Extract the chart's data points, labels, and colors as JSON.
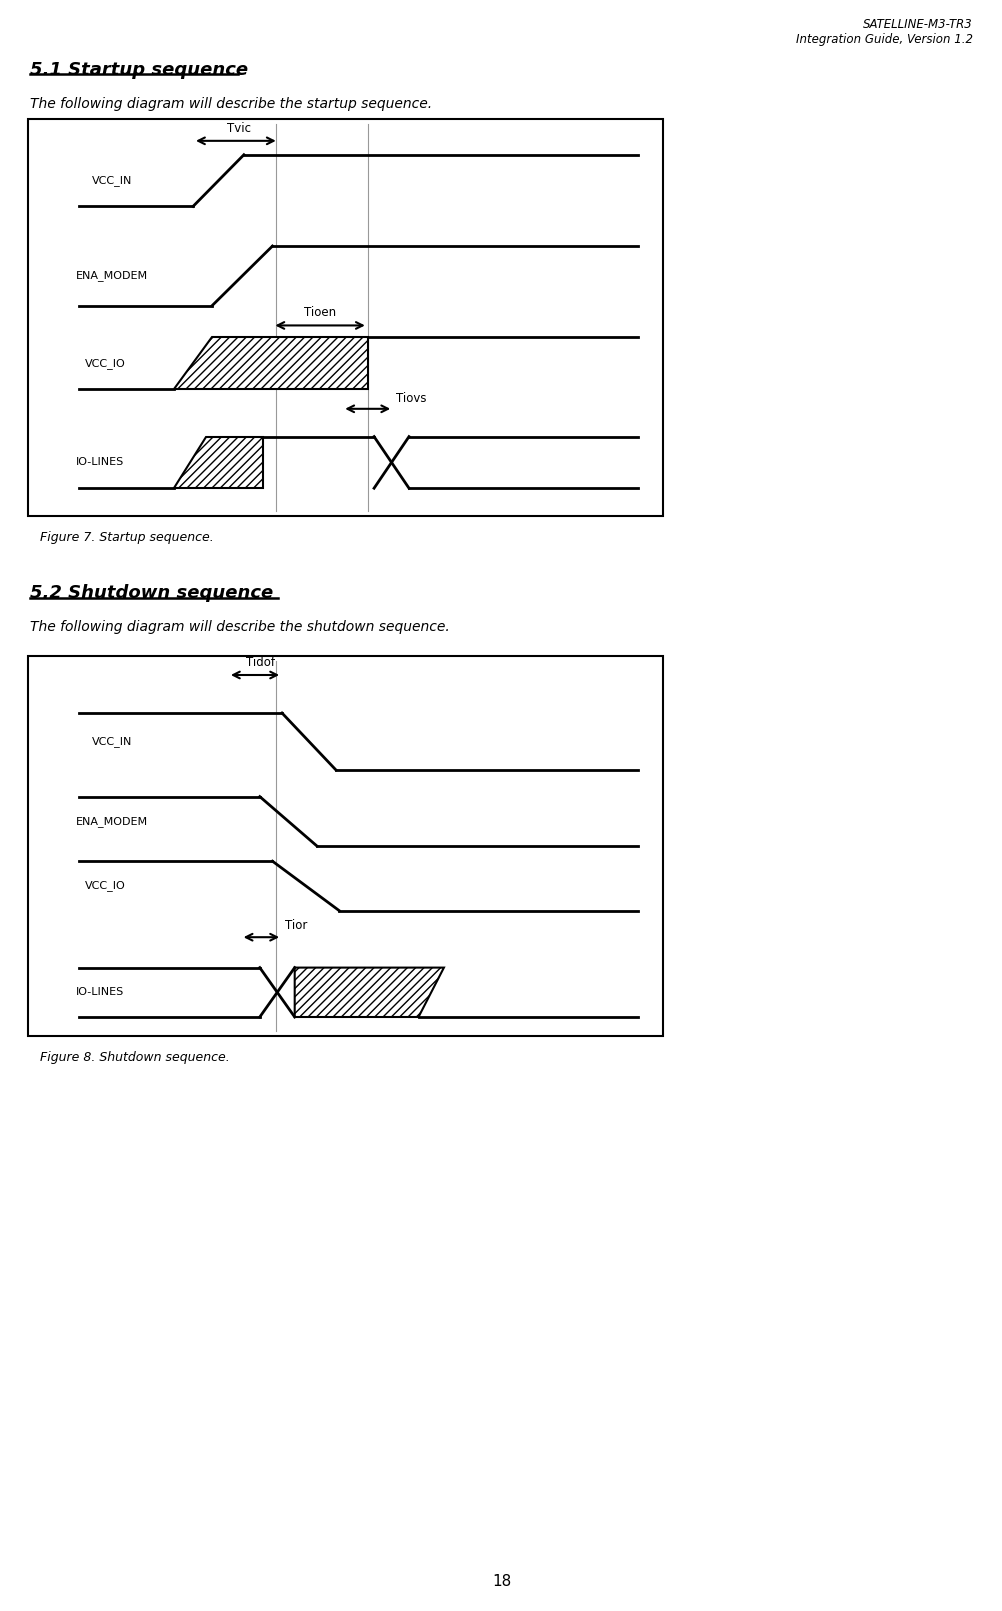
{
  "header_line1": "SATELLINE-M3-TR3",
  "header_line2": "Integration Guide, Version 1.2",
  "section1_title": "5.1 Startup sequence",
  "section1_desc": "The following diagram will describe the startup sequence.",
  "figure1_caption": "Figure 7. Startup sequence.",
  "section2_title": "5.2 Shutdown sequence",
  "section2_desc": "The following diagram will describe the shutdown sequence.",
  "figure2_caption": "Figure 8. Shutdown sequence.",
  "page_number": "18",
  "bg_color": "#ffffff"
}
